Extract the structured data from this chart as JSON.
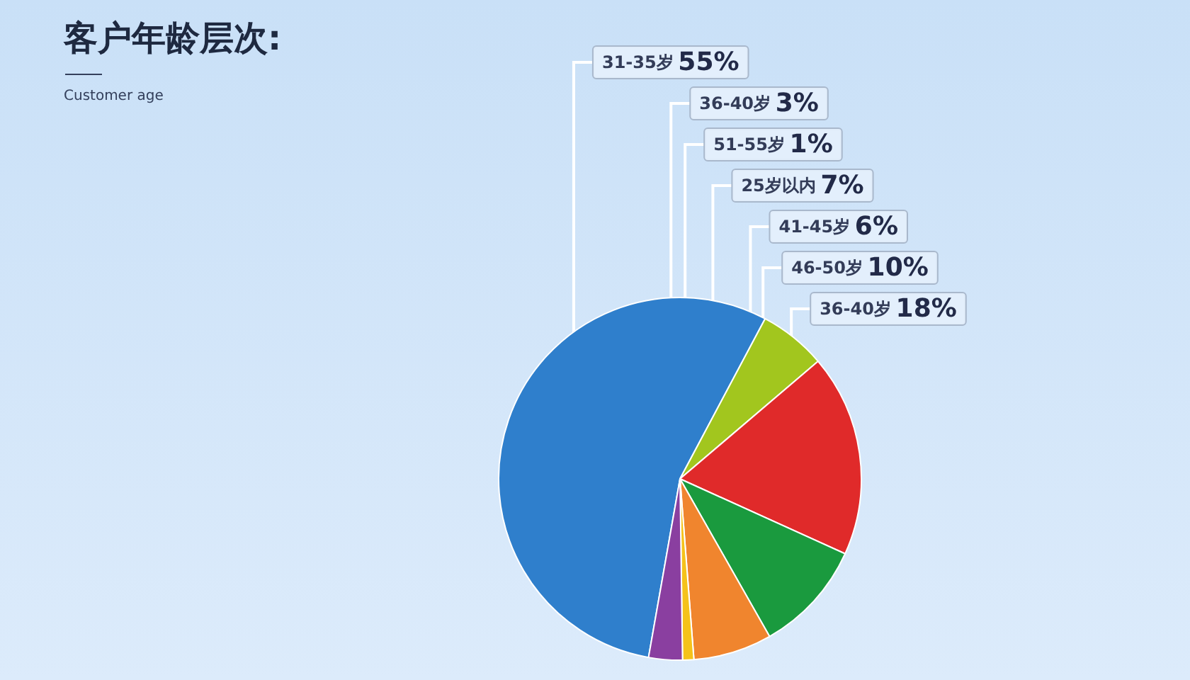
{
  "chart_data": {
    "type": "pie",
    "title": "客户年龄层次:",
    "subtitle": "Customer age",
    "categories": [
      "31-35岁",
      "41-45岁",
      "36-40岁",
      "46-50岁",
      "25岁以内",
      "51-55岁",
      "36-40岁"
    ],
    "values": [
      55,
      6,
      18,
      10,
      7,
      1,
      3
    ],
    "value_labels": [
      "55%",
      "6%",
      "18%",
      "10%",
      "7%",
      "1%",
      "3%"
    ],
    "colors": [
      "#2f7fcc",
      "#a2c61e",
      "#e02a2a",
      "#1a9a3e",
      "#f0852e",
      "#f5c21a",
      "#8a3fa0"
    ]
  }
}
